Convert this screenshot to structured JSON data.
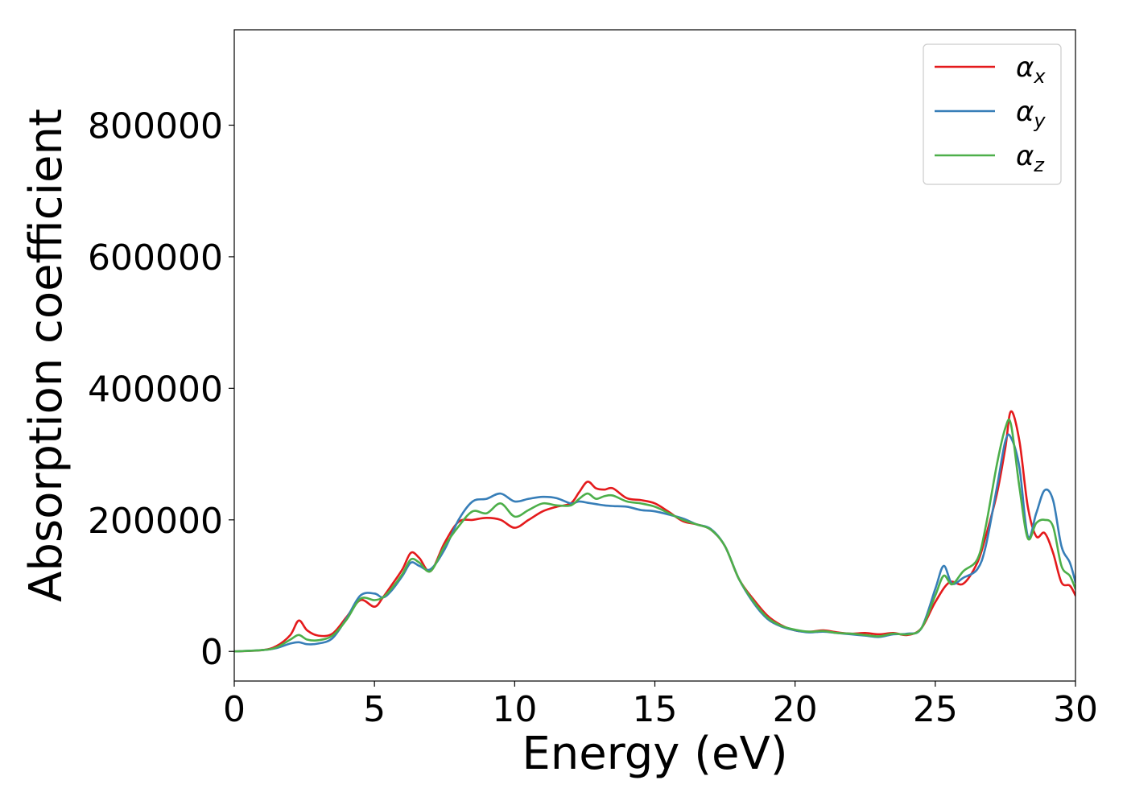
{
  "chart_data": {
    "type": "line",
    "title": "",
    "xlabel": "Energy (eV)",
    "ylabel": "Absorption coefficient",
    "xlim": [
      0,
      30
    ],
    "ylim": [
      -45000,
      945000
    ],
    "xticks": [
      0,
      5,
      10,
      15,
      20,
      25,
      30
    ],
    "xtick_labels": [
      "0",
      "5",
      "10",
      "15",
      "20",
      "25",
      "30"
    ],
    "yticks": [
      0,
      200000,
      400000,
      600000,
      800000
    ],
    "ytick_labels": [
      "0",
      "200000",
      "400000",
      "600000",
      "800000"
    ],
    "grid": false,
    "legend_position": "top-right",
    "series": [
      {
        "name": "α_x",
        "label_base": "α",
        "label_sub": "x",
        "color": "#e41a1c",
        "x": [
          0,
          1,
          1.5,
          2,
          2.3,
          2.6,
          3,
          3.5,
          4,
          4.5,
          5,
          5.3,
          5.6,
          6,
          6.3,
          6.6,
          7,
          7.5,
          8,
          8.5,
          9,
          9.5,
          10,
          10.5,
          11,
          11.5,
          12,
          12.3,
          12.6,
          12.9,
          13.2,
          13.5,
          14,
          14.5,
          15,
          15.5,
          16,
          16.5,
          17,
          17.5,
          18,
          18.5,
          19,
          19.5,
          20,
          20.5,
          21,
          21.5,
          22,
          22.5,
          23,
          23.5,
          24,
          24.5,
          25,
          25.5,
          26,
          26.5,
          26.8,
          27.2,
          27.5,
          27.7,
          28,
          28.3,
          28.6,
          28.9,
          29.2,
          29.5,
          29.8,
          30
        ],
        "y": [
          0,
          2000,
          8000,
          25000,
          47000,
          32000,
          24000,
          27000,
          52000,
          78000,
          68000,
          82000,
          100000,
          125000,
          150000,
          142000,
          122000,
          165000,
          197000,
          200000,
          203000,
          200000,
          188000,
          200000,
          213000,
          220000,
          225000,
          242000,
          258000,
          248000,
          246000,
          248000,
          233000,
          230000,
          225000,
          212000,
          198000,
          193000,
          185000,
          160000,
          110000,
          80000,
          55000,
          40000,
          32000,
          30000,
          32000,
          29000,
          27000,
          28000,
          26000,
          28000,
          25000,
          35000,
          75000,
          105000,
          103000,
          135000,
          175000,
          240000,
          310000,
          365000,
          320000,
          220000,
          175000,
          180000,
          150000,
          105000,
          100000,
          85000
        ]
      },
      {
        "name": "α_y",
        "label_base": "α",
        "label_sub": "y",
        "color": "#377eb8",
        "x": [
          0,
          1,
          1.5,
          2,
          2.3,
          2.6,
          3,
          3.5,
          4,
          4.5,
          5,
          5.3,
          5.6,
          6,
          6.3,
          6.6,
          7,
          7.5,
          8,
          8.5,
          9,
          9.5,
          10,
          10.5,
          11,
          11.5,
          12,
          12.3,
          12.6,
          12.9,
          13.2,
          13.5,
          14,
          14.5,
          15,
          15.5,
          16,
          16.5,
          17,
          17.5,
          18,
          18.5,
          19,
          19.5,
          20,
          20.5,
          21,
          21.5,
          22,
          22.5,
          23,
          23.5,
          24,
          24.5,
          25,
          25.3,
          25.6,
          26,
          26.5,
          26.8,
          27.2,
          27.5,
          27.7,
          28,
          28.3,
          28.6,
          28.9,
          29.2,
          29.5,
          29.8,
          30
        ],
        "y": [
          0,
          2000,
          5000,
          12000,
          14000,
          11000,
          12000,
          20000,
          50000,
          85000,
          88000,
          82000,
          92000,
          115000,
          135000,
          130000,
          125000,
          155000,
          200000,
          228000,
          232000,
          240000,
          228000,
          232000,
          235000,
          233000,
          225000,
          228000,
          226000,
          224000,
          222000,
          221000,
          220000,
          215000,
          213000,
          208000,
          202000,
          193000,
          186000,
          160000,
          110000,
          75000,
          50000,
          38000,
          32000,
          29000,
          30000,
          28000,
          26000,
          24000,
          22000,
          26000,
          27000,
          35000,
          95000,
          130000,
          103000,
          112000,
          125000,
          160000,
          250000,
          320000,
          325000,
          280000,
          175000,
          210000,
          245000,
          230000,
          160000,
          135000,
          105000
        ]
      },
      {
        "name": "α_z",
        "label_base": "α",
        "label_sub": "z",
        "color": "#4daf4a",
        "x": [
          0,
          1,
          1.5,
          2,
          2.3,
          2.6,
          3,
          3.5,
          4,
          4.5,
          5,
          5.3,
          5.6,
          6,
          6.3,
          6.6,
          7,
          7.5,
          8,
          8.5,
          9,
          9.5,
          10,
          10.5,
          11,
          11.5,
          12,
          12.3,
          12.6,
          12.9,
          13.2,
          13.5,
          14,
          14.5,
          15,
          15.5,
          16,
          16.5,
          17,
          17.5,
          18,
          18.5,
          19,
          19.5,
          20,
          20.5,
          21,
          21.5,
          22,
          22.5,
          23,
          23.5,
          24,
          24.5,
          25,
          25.3,
          25.6,
          26,
          26.5,
          26.8,
          27.2,
          27.5,
          27.7,
          28,
          28.3,
          28.6,
          28.9,
          29.2,
          29.5,
          29.8,
          30
        ],
        "y": [
          0,
          2000,
          6000,
          18000,
          25000,
          18000,
          17000,
          24000,
          48000,
          80000,
          78000,
          82000,
          95000,
          118000,
          140000,
          135000,
          122000,
          160000,
          190000,
          213000,
          210000,
          225000,
          205000,
          215000,
          225000,
          222000,
          222000,
          232000,
          240000,
          232000,
          236000,
          237000,
          228000,
          225000,
          220000,
          210000,
          200000,
          193000,
          185000,
          160000,
          110000,
          77000,
          52000,
          39000,
          33000,
          30000,
          31000,
          28000,
          27000,
          25000,
          23000,
          27000,
          26000,
          35000,
          85000,
          115000,
          102000,
          122000,
          140000,
          190000,
          285000,
          340000,
          345000,
          250000,
          172000,
          195000,
          200000,
          190000,
          130000,
          115000,
          95000
        ]
      }
    ]
  }
}
